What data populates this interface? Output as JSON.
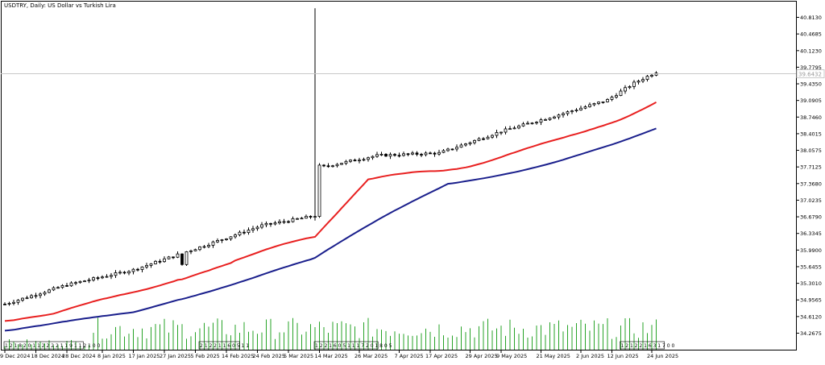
{
  "chart_title": "USDTRY, Daily:  US Dollar vs Turkish Lira",
  "last_price_label": "39.6432",
  "colors": {
    "background": "#ffffff",
    "frame": "#000000",
    "candle": "#000000",
    "bear_body": "#000000",
    "bull_body": "#ffffff",
    "ma_fast": "#e82020",
    "ma_slow": "#1a1f8c",
    "volume": "#27a327",
    "price_line": "#c8c8c8"
  },
  "chart_data": {
    "type": "candlestick",
    "title": "USDTRY, Daily:  US Dollar vs Turkish Lira",
    "ylim": [
      34.1,
      41.05
    ],
    "y_ticks": [
      "40.8130",
      "40.4685",
      "40.1230",
      "39.7795",
      "39.4350",
      "39.0905",
      "38.7460",
      "38.4015",
      "38.0575",
      "37.7125",
      "37.3680",
      "37.0235",
      "36.6790",
      "36.3345",
      "35.9900",
      "35.6455",
      "35.3010",
      "34.9565",
      "34.6120",
      "34.2675"
    ],
    "x_tick_labels": [
      "9 Dec 2024",
      "18 Dec 2024",
      "28 Dec 2024",
      "8 Jan 2025",
      "17 Jan 2025",
      "27 Jan 2025",
      "5 Feb 2025",
      "14 Feb 2025",
      "24 Feb 2025",
      "5 Mar 2025",
      "14 Mar 2025",
      "26 Mar 2025",
      "7 Apr 2025",
      "17 Apr 2025",
      "29 Apr 2025",
      "9 May 2025",
      "21 May 2025",
      "2 Jun 2025",
      "12 Jun 2025",
      "24 Jun 2025"
    ],
    "x_tick_bar_index": [
      0,
      7,
      14,
      22,
      29,
      36,
      43,
      50,
      57,
      64,
      71,
      80,
      89,
      96,
      105,
      112,
      121,
      130,
      137,
      146
    ],
    "session_markers": [
      {
        "bar": 0,
        "text": "1 2 1 8 2 0 1 1 2 2 2 2 1 1 9 1 1 2 1 0 0"
      },
      {
        "bar": 44,
        "text": "2 1 2 2 1 1 6 0 5 1 1"
      },
      {
        "bar": 70,
        "text": "1 2 2 1 6 0 5 1 1 1 7 2 0 1 8 0 5"
      },
      {
        "bar": 139,
        "text": "1 2 1 2 2 1 6 3 1 7 0 0"
      }
    ],
    "ma_fast_name": "",
    "ma_slow_name": "",
    "volume_ylim": [
      0,
      10
    ]
  }
}
